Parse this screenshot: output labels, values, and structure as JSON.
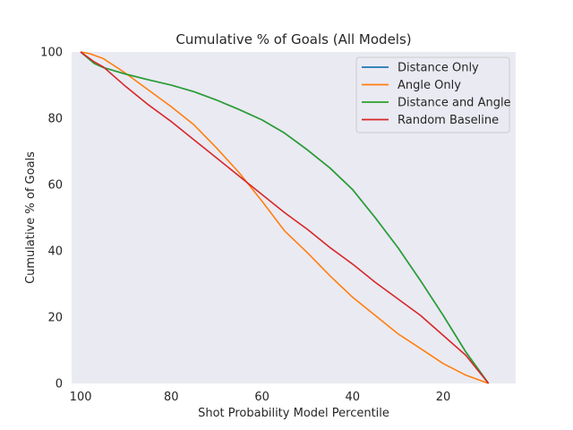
{
  "chart_data": {
    "type": "line",
    "title": "Cumulative % of Goals (All Models)",
    "xlabel": "Shot Probability Model Percentile",
    "ylabel": "Cumulative % of Goals",
    "xlim": [
      102,
      4
    ],
    "ylim": [
      0,
      100
    ],
    "x_inverted": true,
    "xticks": [
      100,
      80,
      60,
      40,
      20
    ],
    "yticks": [
      0,
      20,
      40,
      60,
      80,
      100
    ],
    "grid": false,
    "legend_position": "top-right",
    "series": [
      {
        "name": "Distance Only",
        "color": "#1f77b4",
        "x": [
          100,
          97,
          95,
          90,
          85,
          80,
          75,
          70,
          65,
          60,
          55,
          50,
          45,
          40,
          35,
          30,
          25,
          20,
          15,
          10
        ],
        "y": [
          100,
          96.5,
          95.3,
          93.3,
          91.6,
          90,
          88,
          85.5,
          82.6,
          79.5,
          75.5,
          70.5,
          65,
          58.5,
          50,
          41,
          31,
          20.5,
          9.5,
          0
        ]
      },
      {
        "name": "Angle Only",
        "color": "#ff7f0e",
        "x": [
          100,
          98,
          95,
          90,
          85,
          80,
          75,
          70,
          65,
          60,
          55,
          50,
          45,
          40,
          35,
          30,
          25,
          20,
          15,
          10
        ],
        "y": [
          100,
          99.5,
          98,
          93.5,
          88.5,
          83.5,
          78,
          71,
          63.5,
          55,
          46,
          39.5,
          32.5,
          26,
          20.5,
          15,
          10.5,
          6,
          2.5,
          0
        ]
      },
      {
        "name": "Distance and Angle",
        "color": "#2ca02c",
        "x": [
          100,
          97,
          95,
          90,
          85,
          80,
          75,
          70,
          65,
          60,
          55,
          50,
          45,
          40,
          35,
          30,
          25,
          20,
          15,
          10
        ],
        "y": [
          100,
          96.5,
          95.3,
          93.3,
          91.6,
          90,
          88,
          85.5,
          82.6,
          79.5,
          75.5,
          70.5,
          65,
          58.5,
          50,
          41,
          31,
          20.5,
          9.5,
          0
        ]
      },
      {
        "name": "Random Baseline",
        "color": "#d62728",
        "x": [
          100,
          97,
          95,
          90,
          85,
          80,
          75,
          70,
          65,
          60,
          55,
          50,
          45,
          40,
          35,
          30,
          25,
          20,
          15,
          10
        ],
        "y": [
          100,
          97,
          95.5,
          89.5,
          84,
          79,
          73.5,
          68,
          62.5,
          57,
          51.5,
          46.5,
          41,
          36,
          30.5,
          25.5,
          20.5,
          14.5,
          8.5,
          0
        ]
      }
    ]
  }
}
